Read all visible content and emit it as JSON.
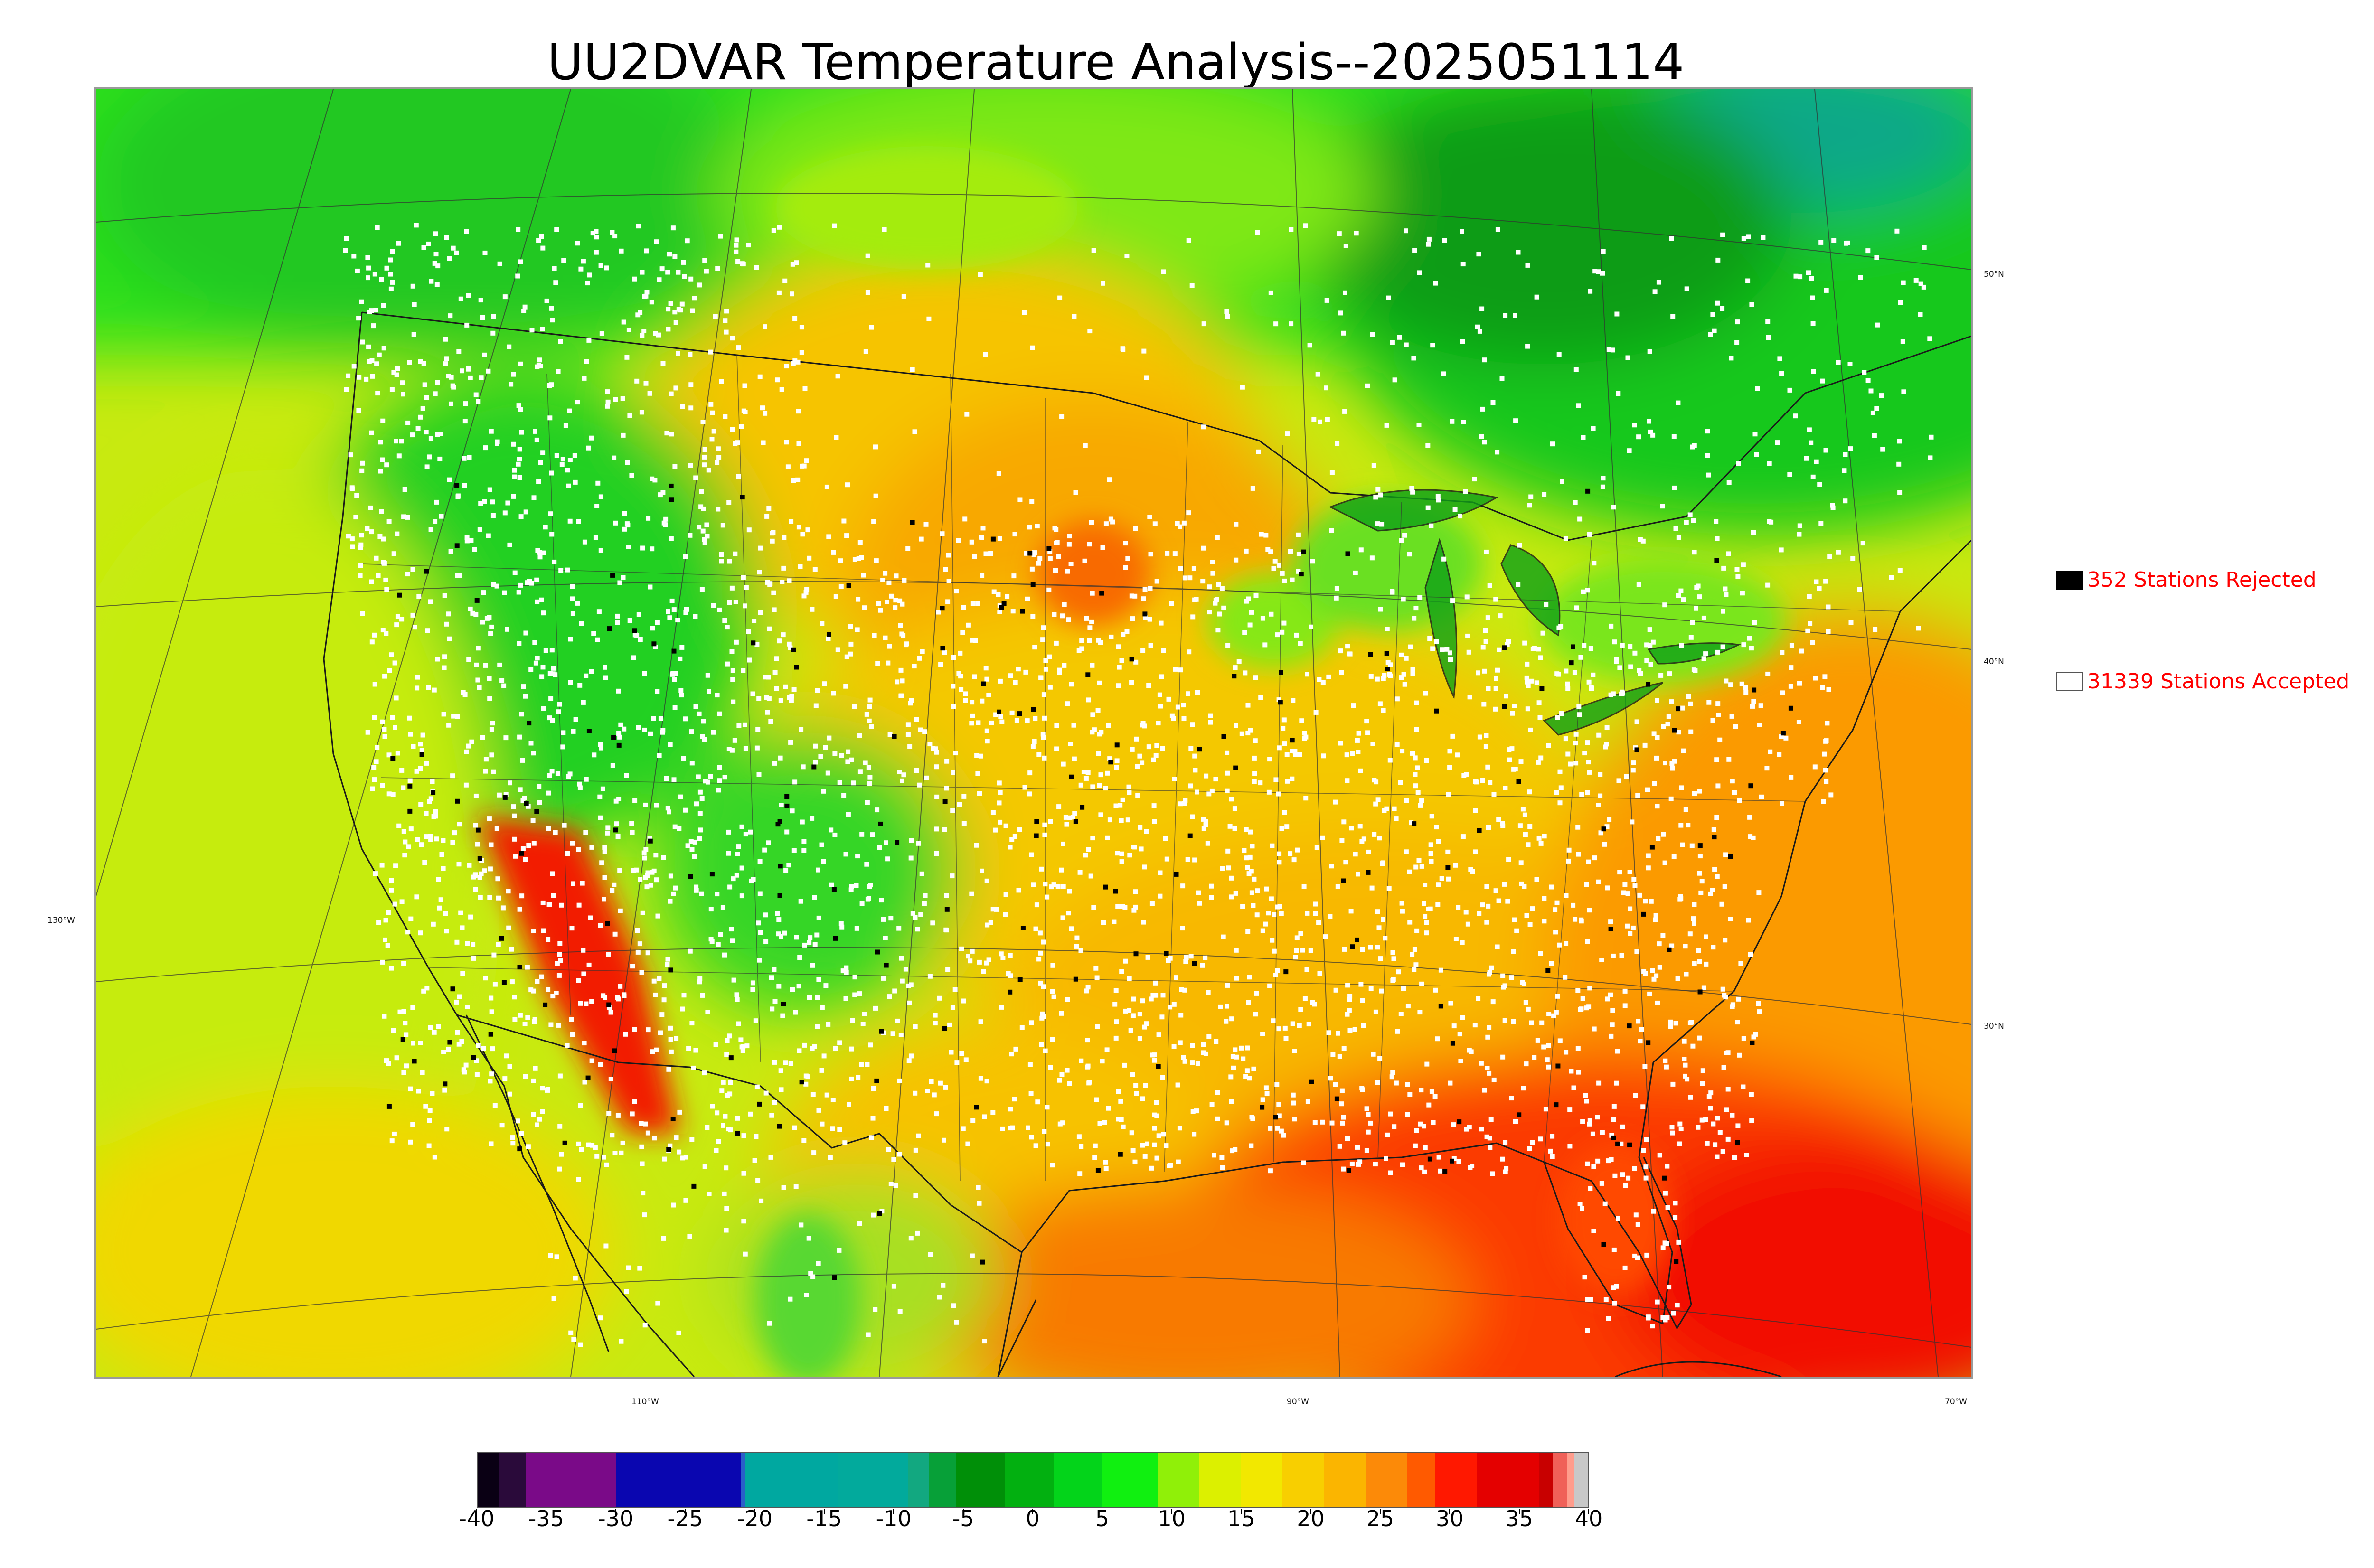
{
  "title": "UU2DVAR Temperature Analysis--2025051114",
  "map": {
    "lat_labels": [
      "50°N",
      "40°N",
      "30°N"
    ],
    "lon_labels": [
      "130°W",
      "110°W",
      "90°W",
      "70°W"
    ]
  },
  "legend": {
    "rejected": {
      "label": "352 Stations Rejected",
      "count": 352,
      "swatch_color": "#000000"
    },
    "accepted": {
      "label": "31339 Stations Accepted",
      "count": 31339,
      "swatch_color": "#ffffff"
    },
    "text_color": "#ff0000"
  },
  "colorbar": {
    "min": -40,
    "max": 40,
    "tick_labels": [
      "-40",
      "-35",
      "-30",
      "-25",
      "-20",
      "-15",
      "-10",
      "-5",
      "0",
      "5",
      "10",
      "15",
      "20",
      "25",
      "30",
      "35",
      "40"
    ],
    "colors": [
      {
        "from": -40,
        "to": -38.5,
        "color": "#0a0014"
      },
      {
        "from": -38.5,
        "to": -36.5,
        "color": "#2a0a3a"
      },
      {
        "from": -36.5,
        "to": -30,
        "color": "#7a0a88"
      },
      {
        "from": -30,
        "to": -21,
        "color": "#0a06b0"
      },
      {
        "from": -21,
        "to": -20.7,
        "color": "#2a60c8"
      },
      {
        "from": -20.7,
        "to": -14,
        "color": "#00a8a0"
      },
      {
        "from": -14,
        "to": -9,
        "color": "#02aa9c"
      },
      {
        "from": -9,
        "to": -7.5,
        "color": "#12a880"
      },
      {
        "from": -7.5,
        "to": -5.5,
        "color": "#07a038"
      },
      {
        "from": -5.5,
        "to": -2,
        "color": "#008f08"
      },
      {
        "from": -2,
        "to": 1.5,
        "color": "#02b010"
      },
      {
        "from": 1.5,
        "to": 5,
        "color": "#03d41a"
      },
      {
        "from": 5,
        "to": 9,
        "color": "#10f010"
      },
      {
        "from": 9,
        "to": 12,
        "color": "#90f008"
      },
      {
        "from": 12,
        "to": 15,
        "color": "#dcf000"
      },
      {
        "from": 15,
        "to": 18,
        "color": "#f2e800"
      },
      {
        "from": 18,
        "to": 21,
        "color": "#f8cf00"
      },
      {
        "from": 21,
        "to": 24,
        "color": "#fbb500"
      },
      {
        "from": 24,
        "to": 27,
        "color": "#fc8a08"
      },
      {
        "from": 27,
        "to": 29,
        "color": "#ff5a00"
      },
      {
        "from": 29,
        "to": 32,
        "color": "#ff1800"
      },
      {
        "from": 32,
        "to": 36.5,
        "color": "#e40000"
      },
      {
        "from": 36.5,
        "to": 37.5,
        "color": "#c80000"
      },
      {
        "from": 37.5,
        "to": 38.5,
        "color": "#f06058"
      },
      {
        "from": 38.5,
        "to": 39,
        "color": "#ff9c8c"
      },
      {
        "from": 39,
        "to": 40,
        "color": "#c8c8c8"
      }
    ]
  }
}
